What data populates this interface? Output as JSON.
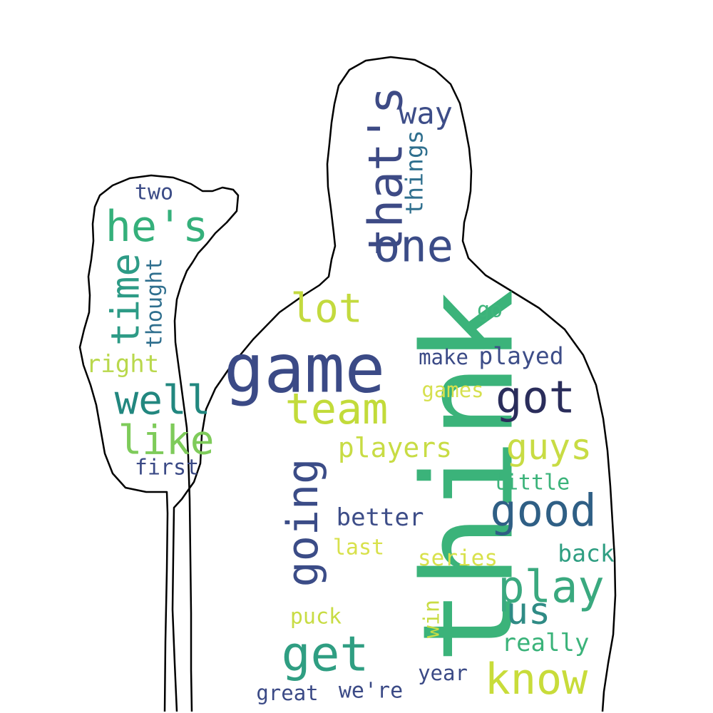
{
  "words": [
    {
      "text": "think",
      "color": "#3bb37a"
    },
    {
      "text": "game",
      "color": "#3b4a86"
    },
    {
      "text": "that's",
      "color": "#3d4a85"
    },
    {
      "text": "one",
      "color": "#3b4c87"
    },
    {
      "text": "way",
      "color": "#3d4d88"
    },
    {
      "text": "things",
      "color": "#2f6f8e"
    },
    {
      "text": "he's",
      "color": "#35b07b"
    },
    {
      "text": "two",
      "color": "#3b4b86"
    },
    {
      "text": "time",
      "color": "#2d9b86"
    },
    {
      "text": "thought",
      "color": "#2f6f8e"
    },
    {
      "text": "right",
      "color": "#b9d84c"
    },
    {
      "text": "lot",
      "color": "#c3da3e"
    },
    {
      "text": "go",
      "color": "#3fb57c"
    },
    {
      "text": "make",
      "color": "#3b4a86"
    },
    {
      "text": "played",
      "color": "#3d4d88"
    },
    {
      "text": "well",
      "color": "#22877f"
    },
    {
      "text": "team",
      "color": "#c2db3a"
    },
    {
      "text": "got",
      "color": "#2a2d5b"
    },
    {
      "text": "games",
      "color": "#d6e04e"
    },
    {
      "text": "like",
      "color": "#7ecb5a"
    },
    {
      "text": "going",
      "color": "#3b4c87"
    },
    {
      "text": "players",
      "color": "#c8dc44"
    },
    {
      "text": "guys",
      "color": "#c8dc44"
    },
    {
      "text": "first",
      "color": "#3b4a86"
    },
    {
      "text": "little",
      "color": "#3bb37a"
    },
    {
      "text": "good",
      "color": "#2f5f85"
    },
    {
      "text": "better",
      "color": "#3d4d88"
    },
    {
      "text": "last",
      "color": "#d8e14c"
    },
    {
      "text": "series",
      "color": "#d8e14c"
    },
    {
      "text": "back",
      "color": "#2f9e82"
    },
    {
      "text": "play",
      "color": "#3aa97f"
    },
    {
      "text": "us",
      "color": "#2f8b85"
    },
    {
      "text": "puck",
      "color": "#c8dc44"
    },
    {
      "text": "win",
      "color": "#c8dc44"
    },
    {
      "text": "get",
      "color": "#2f9e82"
    },
    {
      "text": "really",
      "color": "#3bb37a"
    },
    {
      "text": "year",
      "color": "#3b4a86"
    },
    {
      "text": "know",
      "color": "#c8dc3a"
    },
    {
      "text": "great",
      "color": "#3b4a86"
    },
    {
      "text": "we're",
      "color": "#3b4a86"
    }
  ]
}
